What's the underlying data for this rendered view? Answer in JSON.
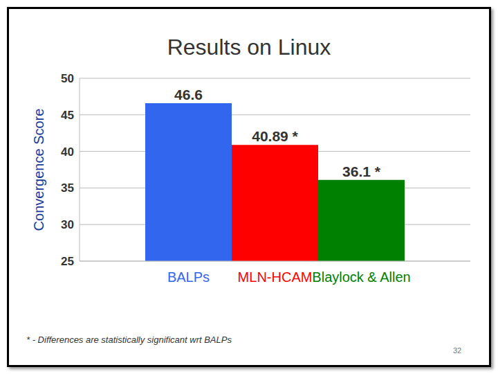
{
  "chart_data": {
    "type": "bar",
    "title": "Results on Linux",
    "y_label": "Convergence Score",
    "categories": [
      "BALPs",
      "MLN-HCAM",
      "Blaylock & Allen"
    ],
    "values": [
      46.6,
      40.89,
      36.1
    ],
    "value_labels": [
      "46.6",
      "40.89 *",
      "36.1 *"
    ],
    "colors": [
      "#3366ee",
      "#ff0000",
      "#008000"
    ],
    "ylim": [
      25,
      50
    ],
    "yticks": [
      25,
      30,
      35,
      40,
      45,
      50
    ],
    "grid": true,
    "data_labels": true,
    "annotations": [
      "* - Differences are statistically significant wrt BALPs",
      "32"
    ]
  }
}
